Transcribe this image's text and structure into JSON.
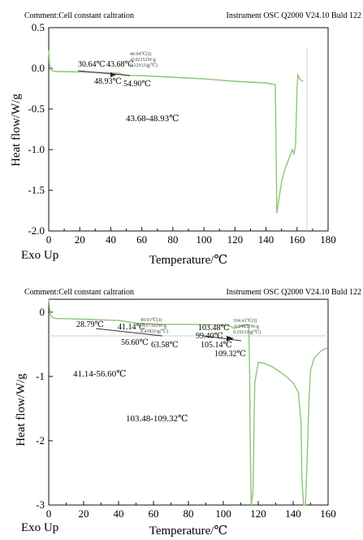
{
  "colors": {
    "curve": "#8ec47a",
    "axis": "#111111",
    "marker": "#333333",
    "baseline": "#cfcfcf"
  },
  "chart_data": [
    {
      "type": "line",
      "comment": "Comment:Cell constant caltration",
      "instrument": "Instrument OSC Q2000 V24.10 Buld 122",
      "xlabel": "Temperature/℃",
      "ylabel": "Heat flow/W/g",
      "exo_label": "Exo Up",
      "xlim": [
        0,
        180
      ],
      "ylim": [
        -2.0,
        0.5
      ],
      "x_ticks": [
        "0",
        "20",
        "40",
        "60",
        "80",
        "100",
        "120",
        "140",
        "160",
        "180"
      ],
      "y_ticks": [
        "0.5",
        "0.0",
        "-0.5",
        "-1.0",
        "-1.5",
        "-2.0"
      ],
      "series": [
        {
          "x": [
            0,
            0.5,
            1.2,
            2.5,
            5,
            10,
            20,
            30,
            40,
            45,
            48,
            50,
            55,
            60,
            80,
            100,
            120,
            140,
            146,
            146.5,
            147,
            148,
            150,
            152,
            155,
            157,
            158,
            159,
            160,
            160.5,
            161,
            162,
            164
          ],
          "y": [
            0.22,
            0.05,
            -0.01,
            -0.03,
            -0.04,
            -0.04,
            -0.045,
            -0.05,
            -0.055,
            -0.06,
            -0.08,
            -0.085,
            -0.088,
            -0.09,
            -0.11,
            -0.13,
            -0.16,
            -0.18,
            -0.2,
            -1.0,
            -1.78,
            -1.65,
            -1.4,
            -1.25,
            -1.1,
            -1.0,
            -1.05,
            -0.95,
            -0.25,
            -0.08,
            -0.1,
            -0.14,
            -0.16
          ]
        }
      ],
      "annotations": {
        "onset": "30.64℃",
        "t1": "43.68℃",
        "t2": "48.93℃",
        "end": "54.90℃",
        "peak_info": [
          "46.04℃(I)",
          "-0.02152W/g",
          "0.1291J/g(℃)"
        ],
        "range": "43.68-48.93℃"
      }
    },
    {
      "type": "line",
      "comment": "Comment:Cell constant caltration",
      "instrument": "Instrument OSC Q2000 V24.10 Buld 122",
      "xlabel": "Temperature/℃",
      "ylabel": "Heat flow/W/g",
      "exo_label": "Exo Up",
      "xlim": [
        0,
        160
      ],
      "ylim": [
        -3,
        0.2
      ],
      "x_ticks": [
        "0",
        "20",
        "40",
        "60",
        "80",
        "100",
        "120",
        "140",
        "160"
      ],
      "y_ticks": [
        "0",
        "-1",
        "-2",
        "-3"
      ],
      "series": [
        {
          "x": [
            0,
            0.5,
            1,
            2,
            4,
            8,
            20,
            30,
            40,
            45,
            50,
            55,
            60,
            65,
            70,
            80,
            100,
            104,
            106,
            108,
            110,
            112,
            114,
            114.5,
            115,
            115.5,
            116,
            117,
            118,
            120,
            124,
            128,
            132,
            136,
            140,
            143,
            144.5,
            145,
            146,
            147,
            148,
            149,
            150,
            152,
            156,
            160
          ],
          "y": [
            0.25,
            0.05,
            -0.04,
            -0.08,
            -0.1,
            -0.1,
            -0.11,
            -0.12,
            -0.13,
            -0.15,
            -0.17,
            -0.18,
            -0.185,
            -0.19,
            -0.19,
            -0.19,
            -0.2,
            -0.22,
            -0.25,
            -0.24,
            -0.21,
            -0.2,
            -0.19,
            -0.22,
            -0.8,
            -2.2,
            -3.0,
            -2.8,
            -1.1,
            -0.78,
            -0.8,
            -0.85,
            -0.92,
            -1.0,
            -1.1,
            -1.25,
            -1.7,
            -2.6,
            -3.0,
            -3.0,
            -2.3,
            -1.4,
            -0.9,
            -0.72,
            -0.6,
            -0.55
          ]
        }
      ],
      "annotations": {
        "onset1": "28.79℃",
        "t1": "41.14℃",
        "t2": "56.60℃",
        "end1": "63.58℃",
        "peak1_info": [
          "49.93℃(I)",
          "-0.07302W/g",
          "0.4383J/g(℃)"
        ],
        "onset2": "99.40℃",
        "t3": "103.48℃",
        "t4": "105.14℃",
        "t5": "109.32℃",
        "peak2_info": [
          "104.41℃(I)",
          "-0.04855W/g",
          "0.2921J/g(℃)"
        ],
        "range1": "41.14-56.60℃",
        "range2": "103.48-109.32℃"
      }
    }
  ]
}
